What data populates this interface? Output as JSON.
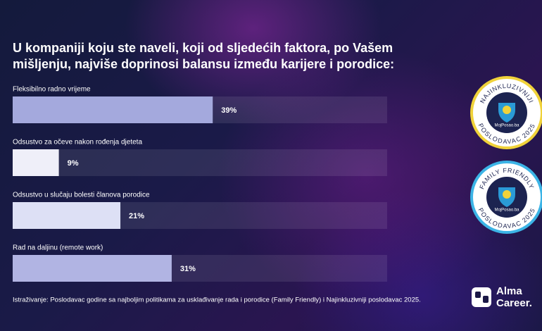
{
  "chart_data": {
    "type": "bar",
    "orientation": "horizontal",
    "title_lines": [
      "U kompaniji koju ste naveli, koji od sljedećih faktora, po Vašem",
      "mišljenju, najviše doprinosi balansu između karijere i porodice:"
    ],
    "categories": [
      "Fleksibilno radno vrijeme",
      "Odsustvo za očeve nakon rođenja djeteta",
      "Odsustvo u slučaju bolesti članova porodice",
      "Rad na daljinu (remote work)"
    ],
    "values": [
      39,
      9,
      21,
      31
    ],
    "value_labels": [
      "39%",
      "9%",
      "21%",
      "31%"
    ],
    "colors": [
      "#a4a9dd",
      "#efeff9",
      "#dde0f5",
      "#b1b4e3"
    ],
    "xlim": [
      0,
      73
    ],
    "footnote": "Istraživanje: Poslodavac godine sa najboljim politikama za usklađivanje rada i porodice (Family Friendly) i Najinkluzivniji poslodavac 2025."
  },
  "badges": [
    {
      "top": "NAJINKLUZIVNIJI",
      "bottom": "POSLODAVAC 2025",
      "brand": "MojPosao.ba"
    },
    {
      "top": "FAMILY FRIENDLY",
      "bottom": "POSLODAVAC 2025",
      "brand": "MojPosao.ba"
    }
  ],
  "logo": [
    "Alma",
    "Career."
  ]
}
